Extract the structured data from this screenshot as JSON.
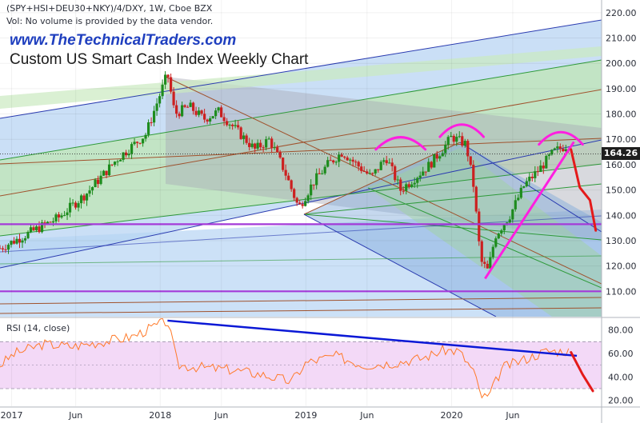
{
  "header": {
    "symbol_line": "(SPY+HSI+DEU30+NKY)/4/DXY, 1W, Cboe BZX",
    "volume_note": "Vol: No volume is provided by the data vendor.",
    "website": "www.TheTechnicalTraders.com",
    "title": "Custom US Smart Cash Index Weekly Chart"
  },
  "price_tag": "164.26",
  "colors": {
    "up": "#1e8c1e",
    "down": "#cc2020",
    "rsi_line": "#ff7a2a",
    "rsi_band": "#f3d9f7",
    "neckline": "#ff1fe0",
    "projection": "#e41a1a",
    "support": "#a43ad8",
    "rsi_trend": "#0a18d6"
  },
  "chart_data": [
    {
      "type": "candlestick",
      "title": "Custom US Smart Cash Index Weekly Chart",
      "ylim": [
        100,
        225
      ],
      "y_ticks": [
        "220.00",
        "210.00",
        "200.00",
        "190.00",
        "180.00",
        "170.00",
        "160.00",
        "150.00",
        "140.00",
        "130.00",
        "120.00",
        "110.00"
      ],
      "x_ticks": [
        "2017",
        "Jun",
        "2018",
        "Jun",
        "2019",
        "Jun",
        "2020",
        "Jun"
      ],
      "anchors": [
        [
          2016.9,
          127
        ],
        [
          2017.1,
          133
        ],
        [
          2017.3,
          139
        ],
        [
          2017.5,
          149
        ],
        [
          2017.7,
          162
        ],
        [
          2017.9,
          172
        ],
        [
          2018.05,
          196
        ],
        [
          2018.1,
          180
        ],
        [
          2018.2,
          183
        ],
        [
          2018.3,
          178
        ],
        [
          2018.4,
          181
        ],
        [
          2018.5,
          175
        ],
        [
          2018.65,
          166
        ],
        [
          2018.75,
          170
        ],
        [
          2018.85,
          158
        ],
        [
          2018.95,
          143
        ],
        [
          2019.05,
          153
        ],
        [
          2019.15,
          160
        ],
        [
          2019.25,
          165
        ],
        [
          2019.35,
          160
        ],
        [
          2019.45,
          155
        ],
        [
          2019.55,
          163
        ],
        [
          2019.65,
          150
        ],
        [
          2019.75,
          155
        ],
        [
          2019.85,
          160
        ],
        [
          2019.95,
          167
        ],
        [
          2020.0,
          171
        ],
        [
          2020.1,
          168
        ],
        [
          2020.15,
          152
        ],
        [
          2020.2,
          122
        ],
        [
          2020.25,
          118
        ],
        [
          2020.3,
          132
        ],
        [
          2020.4,
          140
        ],
        [
          2020.5,
          152
        ],
        [
          2020.6,
          158
        ],
        [
          2020.7,
          165
        ],
        [
          2020.8,
          168
        ]
      ],
      "projection": [
        [
          2020.82,
          166
        ],
        [
          2020.88,
          151
        ],
        [
          2020.95,
          146
        ],
        [
          2020.99,
          134
        ]
      ],
      "horizontals": [
        136.5,
        110
      ],
      "last_value": 164.26
    },
    {
      "type": "line",
      "title": "RSI (14, close)",
      "ylim": [
        15,
        90
      ],
      "y_ticks": [
        "80.00",
        "60.00",
        "40.00",
        "20.00"
      ],
      "band": [
        30,
        70
      ],
      "anchors": [
        [
          2016.9,
          50
        ],
        [
          2017.0,
          60
        ],
        [
          2017.2,
          68
        ],
        [
          2017.4,
          66
        ],
        [
          2017.6,
          70
        ],
        [
          2017.8,
          74
        ],
        [
          2018.05,
          88
        ],
        [
          2018.12,
          50
        ],
        [
          2018.3,
          48
        ],
        [
          2018.5,
          46
        ],
        [
          2018.7,
          42
        ],
        [
          2018.9,
          36
        ],
        [
          2019.0,
          52
        ],
        [
          2019.2,
          58
        ],
        [
          2019.4,
          50
        ],
        [
          2019.6,
          52
        ],
        [
          2019.8,
          56
        ],
        [
          2019.95,
          63
        ],
        [
          2020.05,
          62
        ],
        [
          2020.15,
          45
        ],
        [
          2020.2,
          24
        ],
        [
          2020.25,
          22
        ],
        [
          2020.35,
          48
        ],
        [
          2020.5,
          55
        ],
        [
          2020.65,
          62
        ],
        [
          2020.8,
          62
        ]
      ],
      "projection": [
        [
          2020.82,
          61
        ],
        [
          2020.9,
          42
        ],
        [
          2020.97,
          28
        ]
      ],
      "trendline": [
        [
          2018.05,
          88
        ],
        [
          2020.86,
          58
        ]
      ]
    }
  ]
}
